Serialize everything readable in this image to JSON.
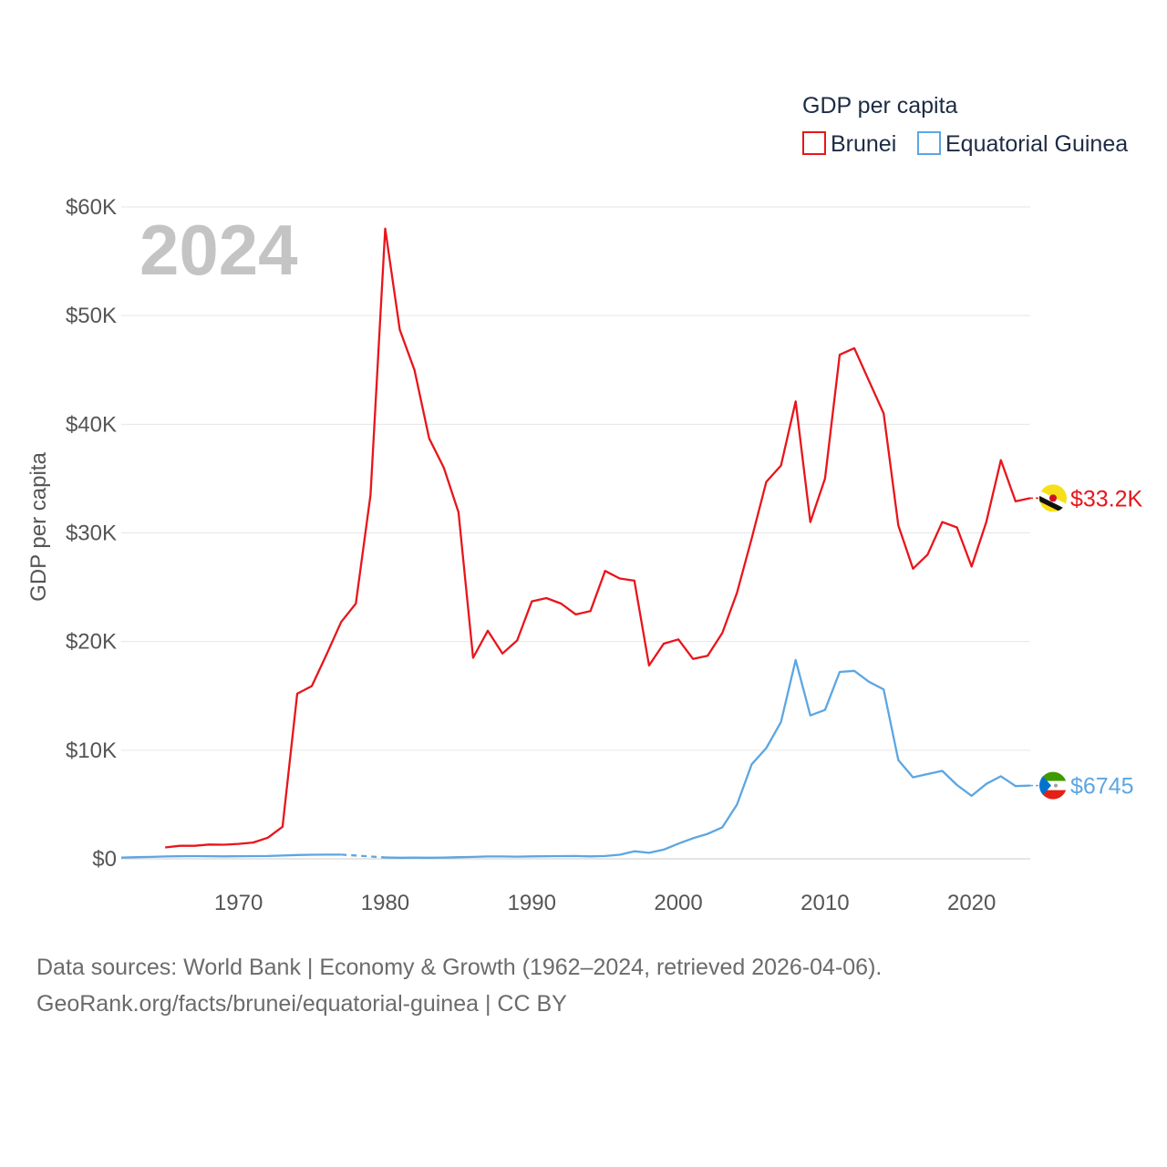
{
  "footer": {
    "sources": "Data sources: World Bank | Economy & Growth (1962–2024, retrieved 2026-04-06).",
    "credit": "GeoRank.org/facts/brunei/equatorial-guinea | CC BY"
  },
  "chart_data": {
    "type": "line",
    "title": "",
    "ylabel": "GDP per capita",
    "xlabel": "",
    "year_label": "2024",
    "legend": {
      "title": "GDP per capita",
      "placement": "top-right"
    },
    "xlim": [
      1962,
      2024
    ],
    "ylim": [
      0,
      60000
    ],
    "x_ticks": [
      1970,
      1980,
      1990,
      2000,
      2010,
      2020
    ],
    "x_tick_labels": [
      "1970",
      "1980",
      "1990",
      "2000",
      "2010",
      "2020"
    ],
    "y_ticks": [
      0,
      10000,
      20000,
      30000,
      40000,
      50000,
      60000
    ],
    "y_tick_labels": [
      "$0",
      "$10K",
      "$20K",
      "$30K",
      "$40K",
      "$50K",
      "$60K"
    ],
    "grid": true,
    "series": [
      {
        "name": "Brunei",
        "color": "#e8151b",
        "end_label": "$33.2K",
        "flag": "brunei-flag-icon",
        "x": [
          1965,
          1966,
          1967,
          1968,
          1969,
          1970,
          1971,
          1972,
          1973,
          1974,
          1975,
          1976,
          1977,
          1978,
          1979,
          1980,
          1981,
          1982,
          1983,
          1984,
          1985,
          1986,
          1987,
          1988,
          1989,
          1990,
          1991,
          1992,
          1993,
          1994,
          1995,
          1996,
          1997,
          1998,
          1999,
          2000,
          2001,
          2002,
          2003,
          2004,
          2005,
          2006,
          2007,
          2008,
          2009,
          2010,
          2011,
          2012,
          2013,
          2014,
          2015,
          2016,
          2017,
          2018,
          2019,
          2020,
          2021,
          2022,
          2023,
          2024
        ],
        "values": [
          1050,
          1200,
          1200,
          1320,
          1300,
          1380,
          1500,
          1950,
          2950,
          15200,
          15900,
          18800,
          21800,
          23500,
          33500,
          58000,
          48700,
          45000,
          38700,
          36000,
          31900,
          18500,
          21000,
          18900,
          20100,
          23700,
          24000,
          23500,
          22500,
          22800,
          26500,
          25800,
          25600,
          17800,
          19800,
          20200,
          18400,
          18700,
          20800,
          24500,
          29500,
          34700,
          36200,
          42100,
          31000,
          35000,
          46400,
          47000,
          44000,
          41000,
          30700,
          26700,
          28000,
          31000,
          30500,
          26900,
          31000,
          36700,
          32900,
          33200
        ]
      },
      {
        "name": "Equatorial Guinea",
        "color": "#5ca6e2",
        "end_label": "$6745",
        "flag": "equatorial-guinea-flag-icon",
        "x": [
          1962,
          1963,
          1964,
          1965,
          1966,
          1967,
          1968,
          1969,
          1970,
          1971,
          1972,
          1973,
          1974,
          1975,
          1976,
          1977,
          1978,
          1979,
          1980,
          1981,
          1982,
          1983,
          1984,
          1985,
          1986,
          1987,
          1988,
          1989,
          1990,
          1991,
          1992,
          1993,
          1994,
          1995,
          1996,
          1997,
          1998,
          1999,
          2000,
          2001,
          2002,
          2003,
          2004,
          2005,
          2006,
          2007,
          2008,
          2009,
          2010,
          2011,
          2012,
          2013,
          2014,
          2015,
          2016,
          2017,
          2018,
          2019,
          2020,
          2021,
          2022,
          2023,
          2024
        ],
        "values": [
          120,
          150,
          180,
          220,
          240,
          250,
          240,
          230,
          240,
          250,
          260,
          300,
          350,
          380,
          390,
          390,
          null,
          null,
          130,
          100,
          110,
          100,
          120,
          150,
          180,
          220,
          220,
          200,
          230,
          240,
          250,
          260,
          230,
          260,
          380,
          700,
          550,
          850,
          1400,
          1900,
          2300,
          2900,
          5000,
          8700,
          10200,
          12600,
          18300,
          13200,
          13700,
          17200,
          17300,
          16300,
          15600,
          9100,
          7500,
          7800,
          8100,
          6800,
          5800,
          6900,
          7600,
          6700,
          6745
        ]
      }
    ],
    "gap": {
      "series": "Equatorial Guinea",
      "from": [
        1977,
        390
      ],
      "to": [
        1980,
        130
      ]
    }
  }
}
